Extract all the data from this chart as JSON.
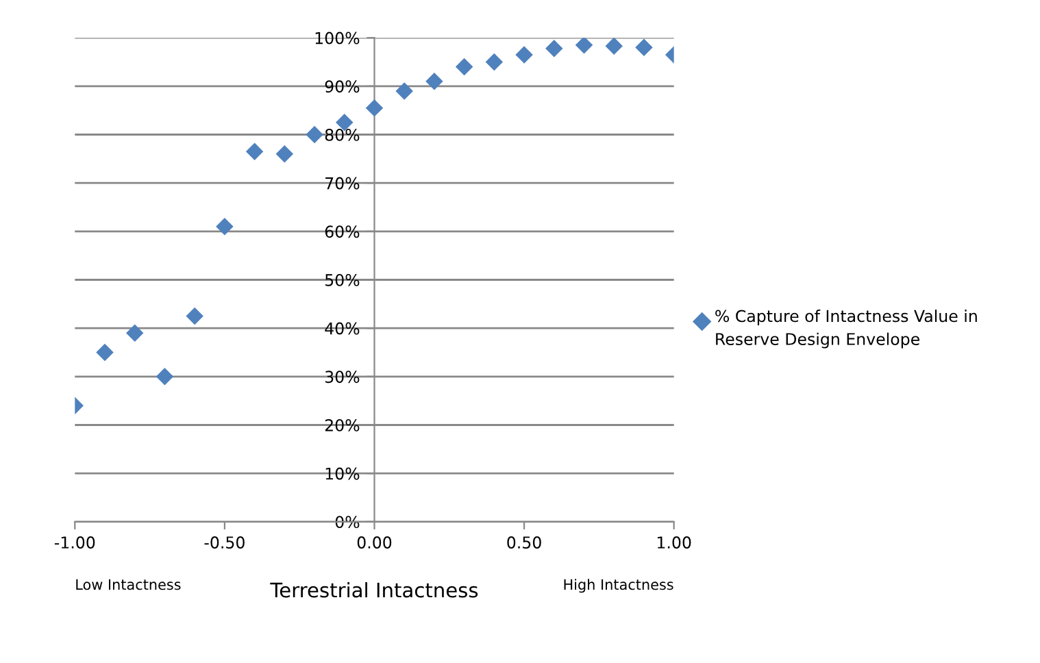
{
  "chart_data": {
    "type": "scatter",
    "xlabel": "Terrestrial Intactness",
    "annotations": [
      "Low Intactness",
      "High Intactness"
    ],
    "series": [
      {
        "name": "% Capture of Intactness Value in Reserve Design Envelope",
        "color": "#4f81bd",
        "x": [
          -1.0,
          -0.9,
          -0.8,
          -0.7,
          -0.6,
          -0.5,
          -0.4,
          -0.3,
          -0.2,
          -0.1,
          0.0,
          0.1,
          0.2,
          0.3,
          0.4,
          0.5,
          0.6,
          0.7,
          0.8,
          0.9,
          1.0
        ],
        "values": [
          24,
          35,
          39,
          30,
          42.5,
          61,
          76.5,
          76,
          80,
          82.5,
          85.5,
          89,
          91,
          94,
          95,
          96.5,
          97.8,
          98.5,
          98.3,
          98,
          96.5
        ]
      }
    ],
    "xlim": [
      -1,
      1
    ],
    "ylim": [
      0,
      100
    ],
    "xticks": [
      {
        "value": -1,
        "label": "-1.00"
      },
      {
        "value": -0.5,
        "label": "-0.50"
      },
      {
        "value": 0,
        "label": "0.00"
      },
      {
        "value": 0.5,
        "label": "0.50"
      },
      {
        "value": 1,
        "label": "1.00"
      }
    ],
    "yticks": [
      {
        "value": 0,
        "label": "0%"
      },
      {
        "value": 10,
        "label": "10%"
      },
      {
        "value": 20,
        "label": "20%"
      },
      {
        "value": 30,
        "label": "30%"
      },
      {
        "value": 40,
        "label": "40%"
      },
      {
        "value": 50,
        "label": "50%"
      },
      {
        "value": 60,
        "label": "60%"
      },
      {
        "value": 70,
        "label": "70%"
      },
      {
        "value": 80,
        "label": "80%"
      },
      {
        "value": 90,
        "label": "90%"
      },
      {
        "value": 100,
        "label": "100%"
      }
    ],
    "grid": "y",
    "legend": "right",
    "marker": "diamond"
  }
}
